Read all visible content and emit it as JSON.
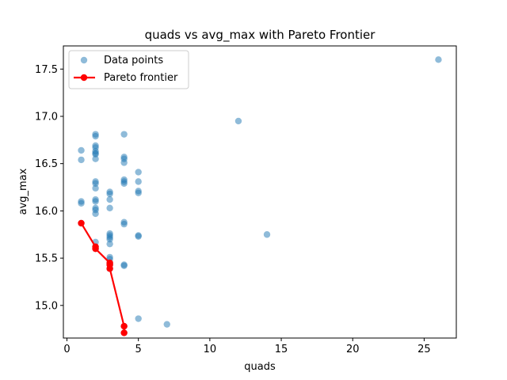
{
  "chart_data": {
    "type": "scatter",
    "title": "quads vs avg_max with Pareto Frontier",
    "xlabel": "quads",
    "ylabel": "avg_max",
    "xlim": [
      -0.25,
      27.25
    ],
    "ylim": [
      14.655,
      17.745
    ],
    "xticks": [
      0,
      5,
      10,
      15,
      20,
      25
    ],
    "yticks": [
      15.0,
      15.5,
      16.0,
      16.5,
      17.0,
      17.5
    ],
    "xtick_labels": [
      "0",
      "5",
      "10",
      "15",
      "20",
      "25"
    ],
    "ytick_labels": [
      "15.0",
      "15.5",
      "16.0",
      "16.5",
      "17.0",
      "17.5"
    ],
    "grid": false,
    "legend": {
      "position": "top-left"
    },
    "series": [
      {
        "name": "Data points",
        "kind": "scatter",
        "color": "#1f77b4",
        "points": [
          [
            1,
            16.64
          ],
          [
            1,
            16.54
          ],
          [
            1,
            16.1
          ],
          [
            1,
            16.08
          ],
          [
            1,
            15.87
          ],
          [
            2,
            16.81
          ],
          [
            2,
            16.79
          ],
          [
            2,
            16.69
          ],
          [
            2,
            16.67
          ],
          [
            2,
            16.63
          ],
          [
            2,
            16.61
          ],
          [
            2,
            16.6
          ],
          [
            2,
            16.55
          ],
          [
            2,
            16.31
          ],
          [
            2,
            16.29
          ],
          [
            2,
            16.24
          ],
          [
            2,
            16.12
          ],
          [
            2,
            16.1
          ],
          [
            2,
            16.03
          ],
          [
            2,
            16.01
          ],
          [
            2,
            15.97
          ],
          [
            2,
            15.67
          ],
          [
            2,
            15.62
          ],
          [
            2,
            15.6
          ],
          [
            3,
            16.2
          ],
          [
            3,
            16.18
          ],
          [
            3,
            16.12
          ],
          [
            3,
            16.03
          ],
          [
            3,
            15.76
          ],
          [
            3,
            15.74
          ],
          [
            3,
            15.72
          ],
          [
            3,
            15.7
          ],
          [
            3,
            15.65
          ],
          [
            3,
            15.51
          ],
          [
            3,
            15.49
          ],
          [
            3,
            15.45
          ],
          [
            3,
            15.43
          ],
          [
            3,
            15.39
          ],
          [
            4,
            16.81
          ],
          [
            4,
            16.57
          ],
          [
            4,
            16.55
          ],
          [
            4,
            16.51
          ],
          [
            4,
            16.33
          ],
          [
            4,
            16.31
          ],
          [
            4,
            16.29
          ],
          [
            4,
            15.88
          ],
          [
            4,
            15.86
          ],
          [
            4,
            15.43
          ],
          [
            4,
            15.42
          ],
          [
            4,
            14.78
          ],
          [
            4,
            14.71
          ],
          [
            5,
            16.41
          ],
          [
            5,
            16.31
          ],
          [
            5,
            16.21
          ],
          [
            5,
            16.19
          ],
          [
            5,
            15.74
          ],
          [
            5,
            15.73
          ],
          [
            5,
            14.86
          ],
          [
            7,
            14.8
          ],
          [
            12,
            16.95
          ],
          [
            14,
            15.75
          ],
          [
            26,
            17.6
          ]
        ]
      },
      {
        "name": "Pareto frontier",
        "kind": "line",
        "color": "#ff0000",
        "points": [
          [
            1,
            15.87
          ],
          [
            2,
            15.62
          ],
          [
            2,
            15.6
          ],
          [
            3,
            15.45
          ],
          [
            3,
            15.43
          ],
          [
            3,
            15.39
          ],
          [
            4,
            14.78
          ],
          [
            4,
            14.71
          ]
        ]
      }
    ]
  }
}
